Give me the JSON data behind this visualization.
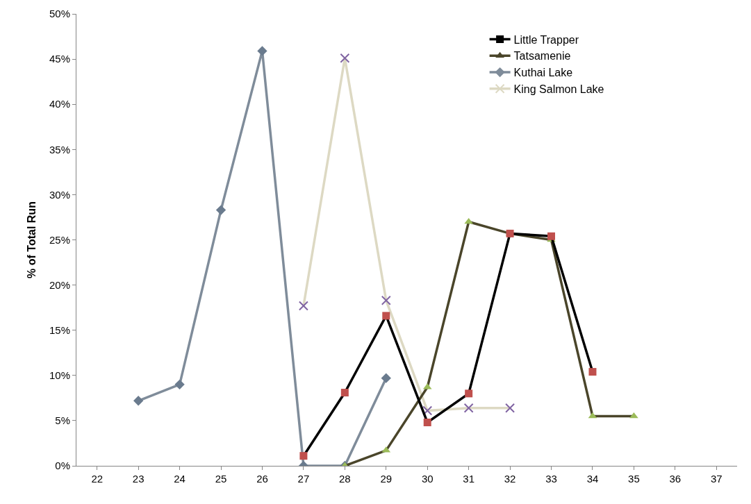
{
  "chart_data": {
    "type": "line",
    "ylabel": "% of Total Run",
    "categories": [
      "22",
      "23",
      "24",
      "25",
      "26",
      "27",
      "28",
      "29",
      "30",
      "31",
      "32",
      "33",
      "34",
      "35",
      "36",
      "37"
    ],
    "series": [
      {
        "name": "Little Trapper",
        "color": "#000000",
        "colors": [
          null,
          null,
          null,
          null,
          null,
          "#c0504d",
          "#c0504d",
          "#c0504d",
          "#c0504d",
          "#c0504d",
          "#c0504d",
          "#c0504d",
          "#c0504d",
          null,
          null,
          null
        ],
        "marker": "square",
        "values": [
          null,
          null,
          null,
          null,
          null,
          1.1,
          8.1,
          16.6,
          4.8,
          8.0,
          25.7,
          25.4,
          10.4,
          null,
          null,
          null
        ]
      },
      {
        "name": "Tatsamenie",
        "color": "#4a452a",
        "colors": [
          null,
          null,
          null,
          null,
          null,
          null,
          "#9bbb59",
          "#9bbb59",
          "#9bbb59",
          "#9bbb59",
          "#9bbb59",
          "#9bbb59",
          "#9bbb59",
          "#9bbb59",
          null,
          null
        ],
        "marker": "triangle",
        "values": [
          null,
          null,
          null,
          null,
          null,
          null,
          0,
          1.7,
          8.7,
          27.0,
          25.7,
          25.0,
          5.5,
          5.5,
          null,
          null
        ]
      },
      {
        "name": "Kuthai Lake",
        "color": "#7f8c9a",
        "colors": [
          null,
          "#6a7b8e",
          "#6a7b8e",
          "#6a7b8e",
          "#6a7b8e",
          "#6a7b8e",
          "#6a7b8e",
          "#6a7b8e",
          null,
          null,
          null,
          null,
          null,
          null,
          null,
          null
        ],
        "marker": "diamond",
        "values": [
          null,
          7.2,
          9.0,
          28.3,
          45.9,
          0,
          0,
          9.7,
          null,
          null,
          null,
          null,
          null,
          null,
          null,
          null
        ]
      },
      {
        "name": "King Salmon Lake",
        "color": "#ddd9c3",
        "colors": [
          null,
          null,
          null,
          null,
          null,
          "#8064a2",
          "#8064a2",
          "#8064a2",
          "#8064a2",
          "#8064a2",
          "#8064a2",
          null,
          null,
          null,
          null,
          null
        ],
        "marker": "cross",
        "values": [
          null,
          null,
          null,
          null,
          null,
          17.7,
          45.1,
          18.3,
          6.1,
          6.4,
          6.4,
          null,
          null,
          null,
          null,
          null
        ]
      }
    ],
    "ylim": [
      0,
      50
    ],
    "yticks": [
      {
        "value": 0,
        "label": "0%"
      },
      {
        "value": 5,
        "label": "5%"
      },
      {
        "value": 10,
        "label": "10%"
      },
      {
        "value": 15,
        "label": "15%"
      },
      {
        "value": 20,
        "label": "20%"
      },
      {
        "value": 25,
        "label": "25%"
      },
      {
        "value": 30,
        "label": "30%"
      },
      {
        "value": 35,
        "label": "35%"
      },
      {
        "value": 40,
        "label": "40%"
      },
      {
        "value": 45,
        "label": "45%"
      },
      {
        "value": 50,
        "label": "50%"
      }
    ],
    "legend": "top right",
    "line_style": "solid"
  }
}
